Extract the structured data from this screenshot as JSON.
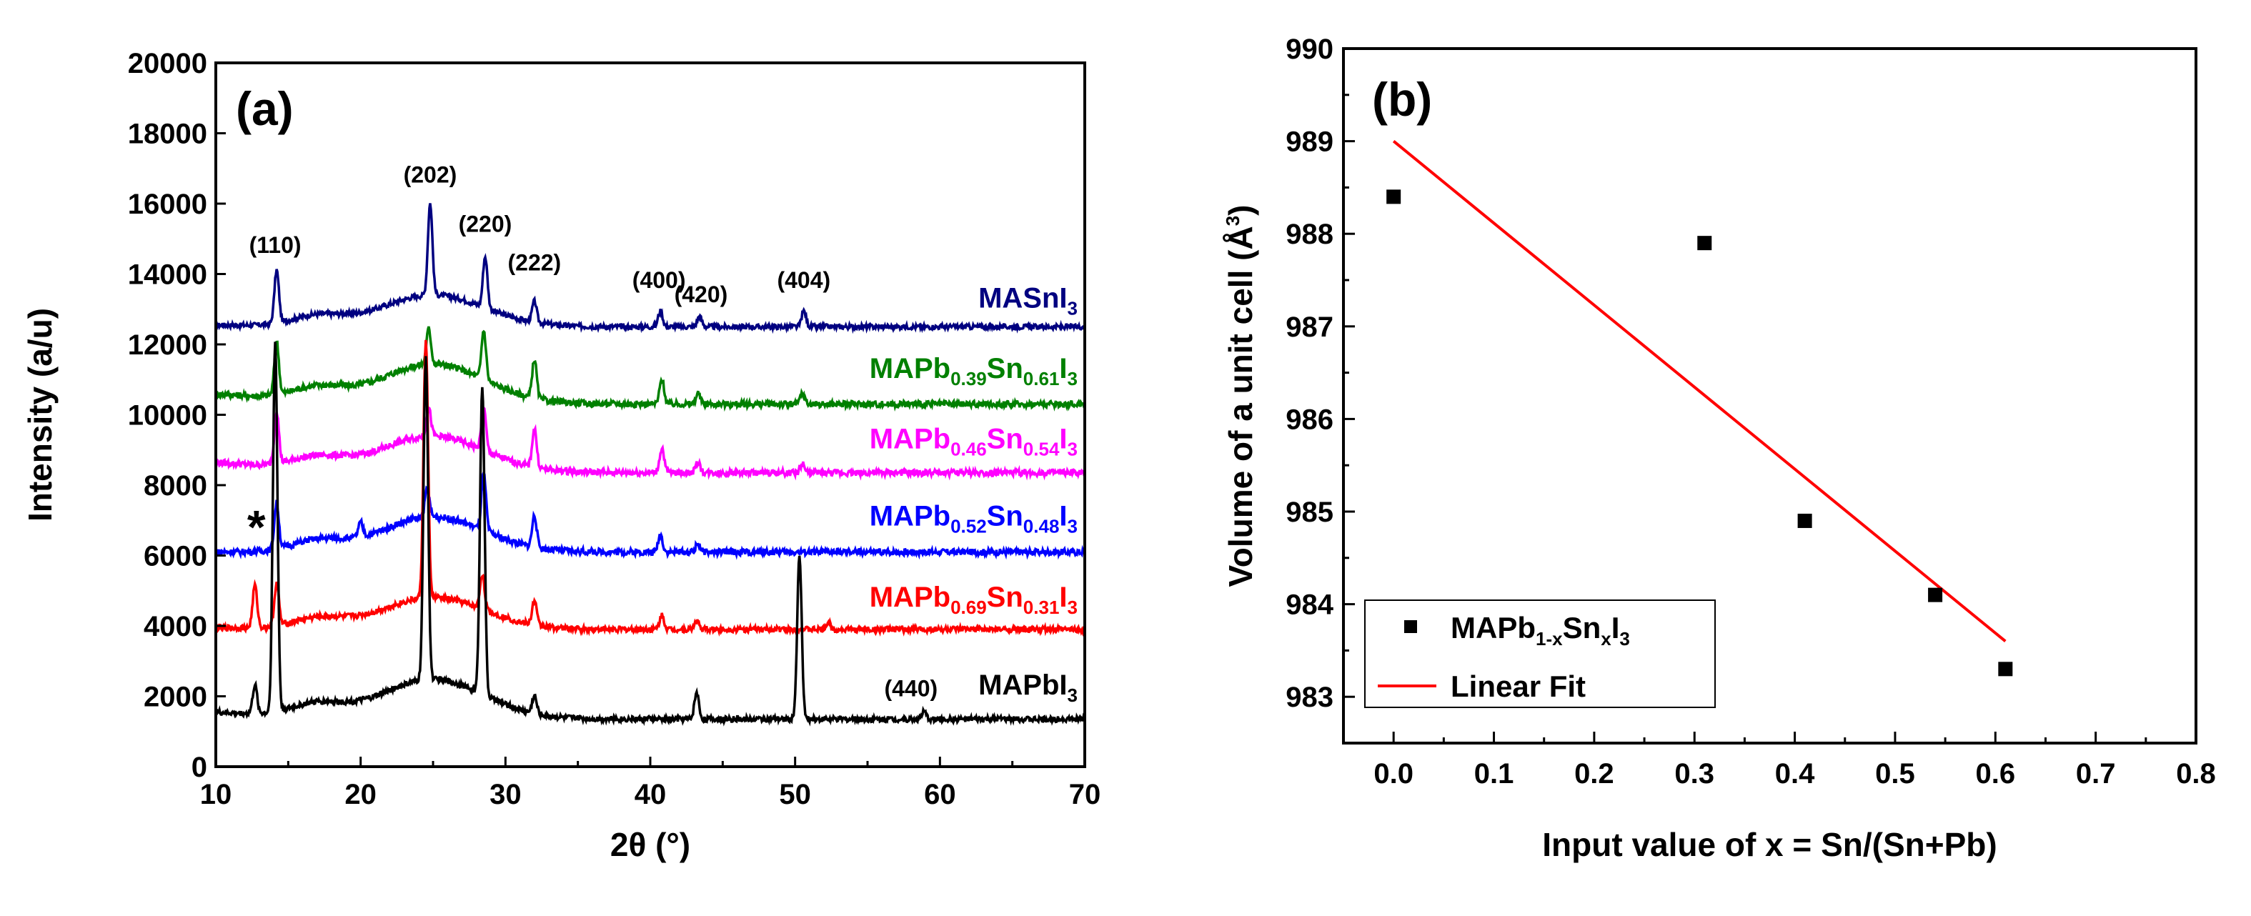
{
  "colors": {
    "MAPbI3": "#000000",
    "x031": "#ff0000",
    "x048": "#0000ff",
    "x054": "#ff00ff",
    "x061": "#008000",
    "MASnI3": "#000080",
    "fit": "#ff0000",
    "points": "#000000"
  },
  "chart_data": [
    {
      "panel": "(a)",
      "type": "line",
      "xlabel": "2θ (°)",
      "ylabel": "Intensity (a/u)",
      "xlim": [
        10,
        70
      ],
      "ylim": [
        0,
        20000
      ],
      "xticks": [
        10,
        20,
        30,
        40,
        50,
        60,
        70
      ],
      "yticks": [
        0,
        2000,
        4000,
        6000,
        8000,
        10000,
        12000,
        14000,
        16000,
        18000,
        20000
      ],
      "peak_labels": [
        {
          "text": "(110)",
          "x": 14.1,
          "y": 14600
        },
        {
          "text": "(202)",
          "x": 24.8,
          "y": 16600
        },
        {
          "text": "(220)",
          "x": 28.6,
          "y": 15200
        },
        {
          "text": "(222)",
          "x": 32.0,
          "y": 14100
        },
        {
          "text": "(400)",
          "x": 40.6,
          "y": 13600
        },
        {
          "text": "(420)",
          "x": 43.5,
          "y": 13200
        },
        {
          "text": "(404)",
          "x": 50.6,
          "y": 13600
        },
        {
          "text": "(440)",
          "x": 58.0,
          "y": 2000
        }
      ],
      "asterisk": {
        "text": "*",
        "x": 12.8,
        "y": 6350
      },
      "series": [
        {
          "name": "MASnI3",
          "label_main": "MASnI",
          "label_sub": "3",
          "baseline": 12500,
          "start": 12550,
          "hump": 900,
          "noise": 70,
          "peaks": [
            [
              14.2,
              1500
            ],
            [
              24.8,
              2600
            ],
            [
              28.6,
              1450
            ],
            [
              32.0,
              600
            ],
            [
              40.7,
              450
            ],
            [
              43.4,
              300
            ],
            [
              50.6,
              450
            ]
          ]
        },
        {
          "name": "MAPb0.39Sn0.61I3",
          "label_parts": [
            "MAPb",
            "0.39",
            "Sn",
            "0.61",
            "I",
            "3"
          ],
          "baseline": 10300,
          "start": 10600,
          "hump": 1100,
          "noise": 90,
          "peaks": [
            [
              14.2,
              1500
            ],
            [
              24.7,
              1000
            ],
            [
              28.5,
              1400
            ],
            [
              32.0,
              1100
            ],
            [
              40.8,
              700
            ],
            [
              43.3,
              300
            ],
            [
              50.5,
              300
            ]
          ]
        },
        {
          "name": "MAPb0.46Sn0.54I3",
          "label_parts": [
            "MAPb",
            "0.46",
            "Sn",
            "0.54",
            "I",
            "3"
          ],
          "baseline": 8350,
          "start": 8650,
          "hump": 1000,
          "noise": 90,
          "peaks": [
            [
              14.2,
              1500
            ],
            [
              24.7,
              800
            ],
            [
              28.5,
              1200
            ],
            [
              32.0,
              1100
            ],
            [
              40.8,
              700
            ],
            [
              43.3,
              300
            ],
            [
              50.5,
              250
            ]
          ]
        },
        {
          "name": "MAPb0.52Sn0.48I3",
          "label_parts": [
            "MAPb",
            "0.52",
            "Sn",
            "0.48",
            "I",
            "3"
          ],
          "baseline": 6100,
          "start": 6100,
          "hump": 1000,
          "noise": 90,
          "peaks": [
            [
              14.2,
              1300
            ],
            [
              20.0,
              400
            ],
            [
              24.6,
              800
            ],
            [
              28.5,
              1600
            ],
            [
              32.0,
              900
            ],
            [
              40.7,
              500
            ],
            [
              43.3,
              250
            ]
          ]
        },
        {
          "name": "MAPb0.69Sn0.31I3",
          "label_parts": [
            "MAPb",
            "0.69",
            "Sn",
            "0.31",
            "I",
            "3"
          ],
          "baseline": 3900,
          "start": 3950,
          "hump": 900,
          "noise": 80,
          "peaks": [
            [
              12.7,
              1200
            ],
            [
              14.2,
              1200
            ],
            [
              24.5,
              7300
            ],
            [
              28.4,
              1000
            ],
            [
              32.0,
              700
            ],
            [
              40.8,
              400
            ],
            [
              43.2,
              250
            ],
            [
              52.3,
              200
            ]
          ]
        },
        {
          "name": "MAPbI3",
          "label_parts": [
            "MAPbI",
            "3"
          ],
          "baseline": 1350,
          "start": 1550,
          "hump": 1100,
          "noise": 80,
          "peaks": [
            [
              12.7,
              800
            ],
            [
              14.1,
              10500
            ],
            [
              24.5,
              9200
            ],
            [
              28.4,
              8800
            ],
            [
              32.0,
              500
            ],
            [
              43.2,
              750
            ],
            [
              50.3,
              4600
            ],
            [
              58.9,
              200
            ]
          ]
        }
      ]
    },
    {
      "panel": "(b)",
      "type": "scatter",
      "xlabel": "Input value of x = Sn/(Sn+Pb)",
      "ylabel_main": "Volume of a unit cell (Å",
      "ylabel_sup": "3",
      "ylabel_end": ")",
      "xlim": [
        -0.05,
        0.8
      ],
      "ylim": [
        982.5,
        990
      ],
      "xticks": [
        "0.0",
        "0.1",
        "0.2",
        "0.3",
        "0.4",
        "0.5",
        "0.6",
        "0.7",
        "0.8"
      ],
      "yticks": [
        983,
        984,
        985,
        986,
        987,
        988,
        989,
        990
      ],
      "points": [
        {
          "x": 0.0,
          "y": 988.4
        },
        {
          "x": 0.31,
          "y": 987.9
        },
        {
          "x": 0.41,
          "y": 984.9
        },
        {
          "x": 0.54,
          "y": 984.1
        },
        {
          "x": 0.61,
          "y": 983.3
        }
      ],
      "fit": {
        "x": [
          0.0,
          0.61
        ],
        "y": [
          989.0,
          983.6
        ]
      },
      "legend": {
        "position": "bottom-left",
        "points_label_parts": [
          "MAPb",
          "1-x",
          "Sn",
          "x",
          "I",
          "3"
        ],
        "fit_label": "Linear Fit"
      }
    }
  ]
}
